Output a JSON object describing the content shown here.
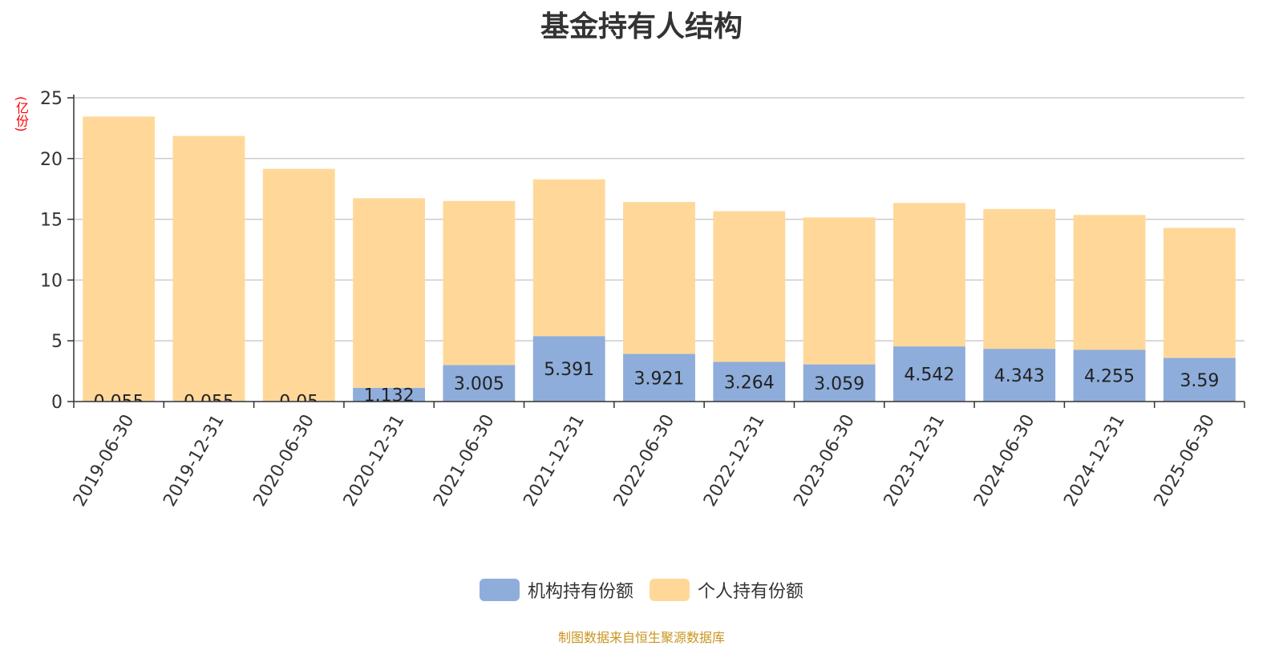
{
  "chart_data": {
    "type": "bar",
    "stacked": true,
    "title": "基金持有人结构",
    "y_unit": "(亿份)",
    "ylim": [
      0,
      25
    ],
    "yticks": [
      0,
      5,
      10,
      15,
      20,
      25
    ],
    "grid": true,
    "legend_position": "bottom",
    "categories": [
      "2019-06-30",
      "2019-12-31",
      "2020-06-30",
      "2020-12-31",
      "2021-06-30",
      "2021-12-31",
      "2022-06-30",
      "2022-12-31",
      "2023-06-30",
      "2023-12-31",
      "2024-06-30",
      "2024-12-31",
      "2025-06-30"
    ],
    "series": [
      {
        "name": "机构持有份额",
        "color": "#8eaddb",
        "values": [
          0.055,
          0.055,
          0.05,
          1.132,
          3.005,
          5.391,
          3.921,
          3.264,
          3.059,
          4.542,
          4.343,
          4.255,
          3.59
        ]
      },
      {
        "name": "个人持有份额",
        "color": "#ffd899",
        "values": [
          23.4,
          21.8,
          19.1,
          15.6,
          13.5,
          12.9,
          12.5,
          12.4,
          12.1,
          11.8,
          11.5,
          11.1,
          10.7
        ]
      }
    ],
    "data_labels": [
      "0.055",
      "0.055",
      "0.05",
      "1.132",
      "3.005",
      "5.391",
      "3.921",
      "3.264",
      "3.059",
      "4.542",
      "4.343",
      "4.255",
      "3.59"
    ]
  },
  "footer": {
    "source": "制图数据来自恒生聚源数据库"
  }
}
